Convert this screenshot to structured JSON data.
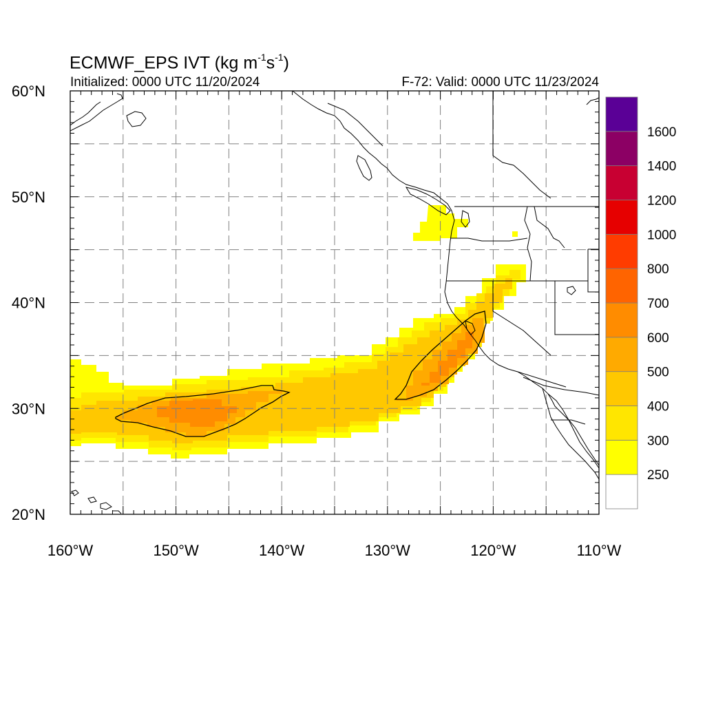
{
  "header": {
    "title_prefix": "ECMWF_EPS IVT (kg m",
    "title_exp1": "-1",
    "title_mid": "s",
    "title_exp2": "-1",
    "title_suffix": ")",
    "initialized": "Initialized: 0000 UTC 11/20/2024",
    "valid": "F-72: Valid: 0000 UTC 11/23/2024"
  },
  "map": {
    "lon_range": [
      -160,
      -110
    ],
    "lat_range": [
      20,
      60
    ],
    "lon_labels": [
      {
        "lon": -160,
        "text": "160°W"
      },
      {
        "lon": -150,
        "text": "150°W"
      },
      {
        "lon": -140,
        "text": "140°W"
      },
      {
        "lon": -130,
        "text": "130°W"
      },
      {
        "lon": -120,
        "text": "120°W"
      },
      {
        "lon": -110,
        "text": "110°W"
      }
    ],
    "lat_labels": [
      {
        "lat": 60,
        "text": "60°N"
      },
      {
        "lat": 50,
        "text": "50°N"
      },
      {
        "lat": 40,
        "text": "40°N"
      },
      {
        "lat": 30,
        "text": "30°N"
      },
      {
        "lat": 20,
        "text": "20°N"
      }
    ],
    "grid_lons": [
      -155,
      -150,
      -145,
      -140,
      -135,
      -130,
      -125,
      -120,
      -115
    ],
    "grid_lats": [
      25,
      30,
      35,
      40,
      45,
      50,
      55
    ],
    "coast_color": "#000000",
    "grid_color": "#7f7f7f"
  },
  "colorbar": {
    "levels": [
      {
        "label": "",
        "color": "#ffffff"
      },
      {
        "label": "250",
        "color": "#ffff00"
      },
      {
        "label": "300",
        "color": "#ffe600"
      },
      {
        "label": "400",
        "color": "#ffc800"
      },
      {
        "label": "500",
        "color": "#ffaa00"
      },
      {
        "label": "600",
        "color": "#ff8c00"
      },
      {
        "label": "700",
        "color": "#ff6400"
      },
      {
        "label": "800",
        "color": "#ff3c00"
      },
      {
        "label": "1000",
        "color": "#e60000"
      },
      {
        "label": "1200",
        "color": "#c80032"
      },
      {
        "label": "1400",
        "color": "#8c0064"
      },
      {
        "label": "1600",
        "color": "#5a0096"
      }
    ]
  },
  "ivt_field": {
    "plume_main": {
      "contour_level": 500,
      "core_lat": 30,
      "core_lon_range": [
        -155,
        -139
      ]
    },
    "plume_coastal": {
      "contour_level": 500,
      "lat_range": [
        31,
        39
      ],
      "lon_range": [
        -129,
        -121
      ]
    }
  }
}
